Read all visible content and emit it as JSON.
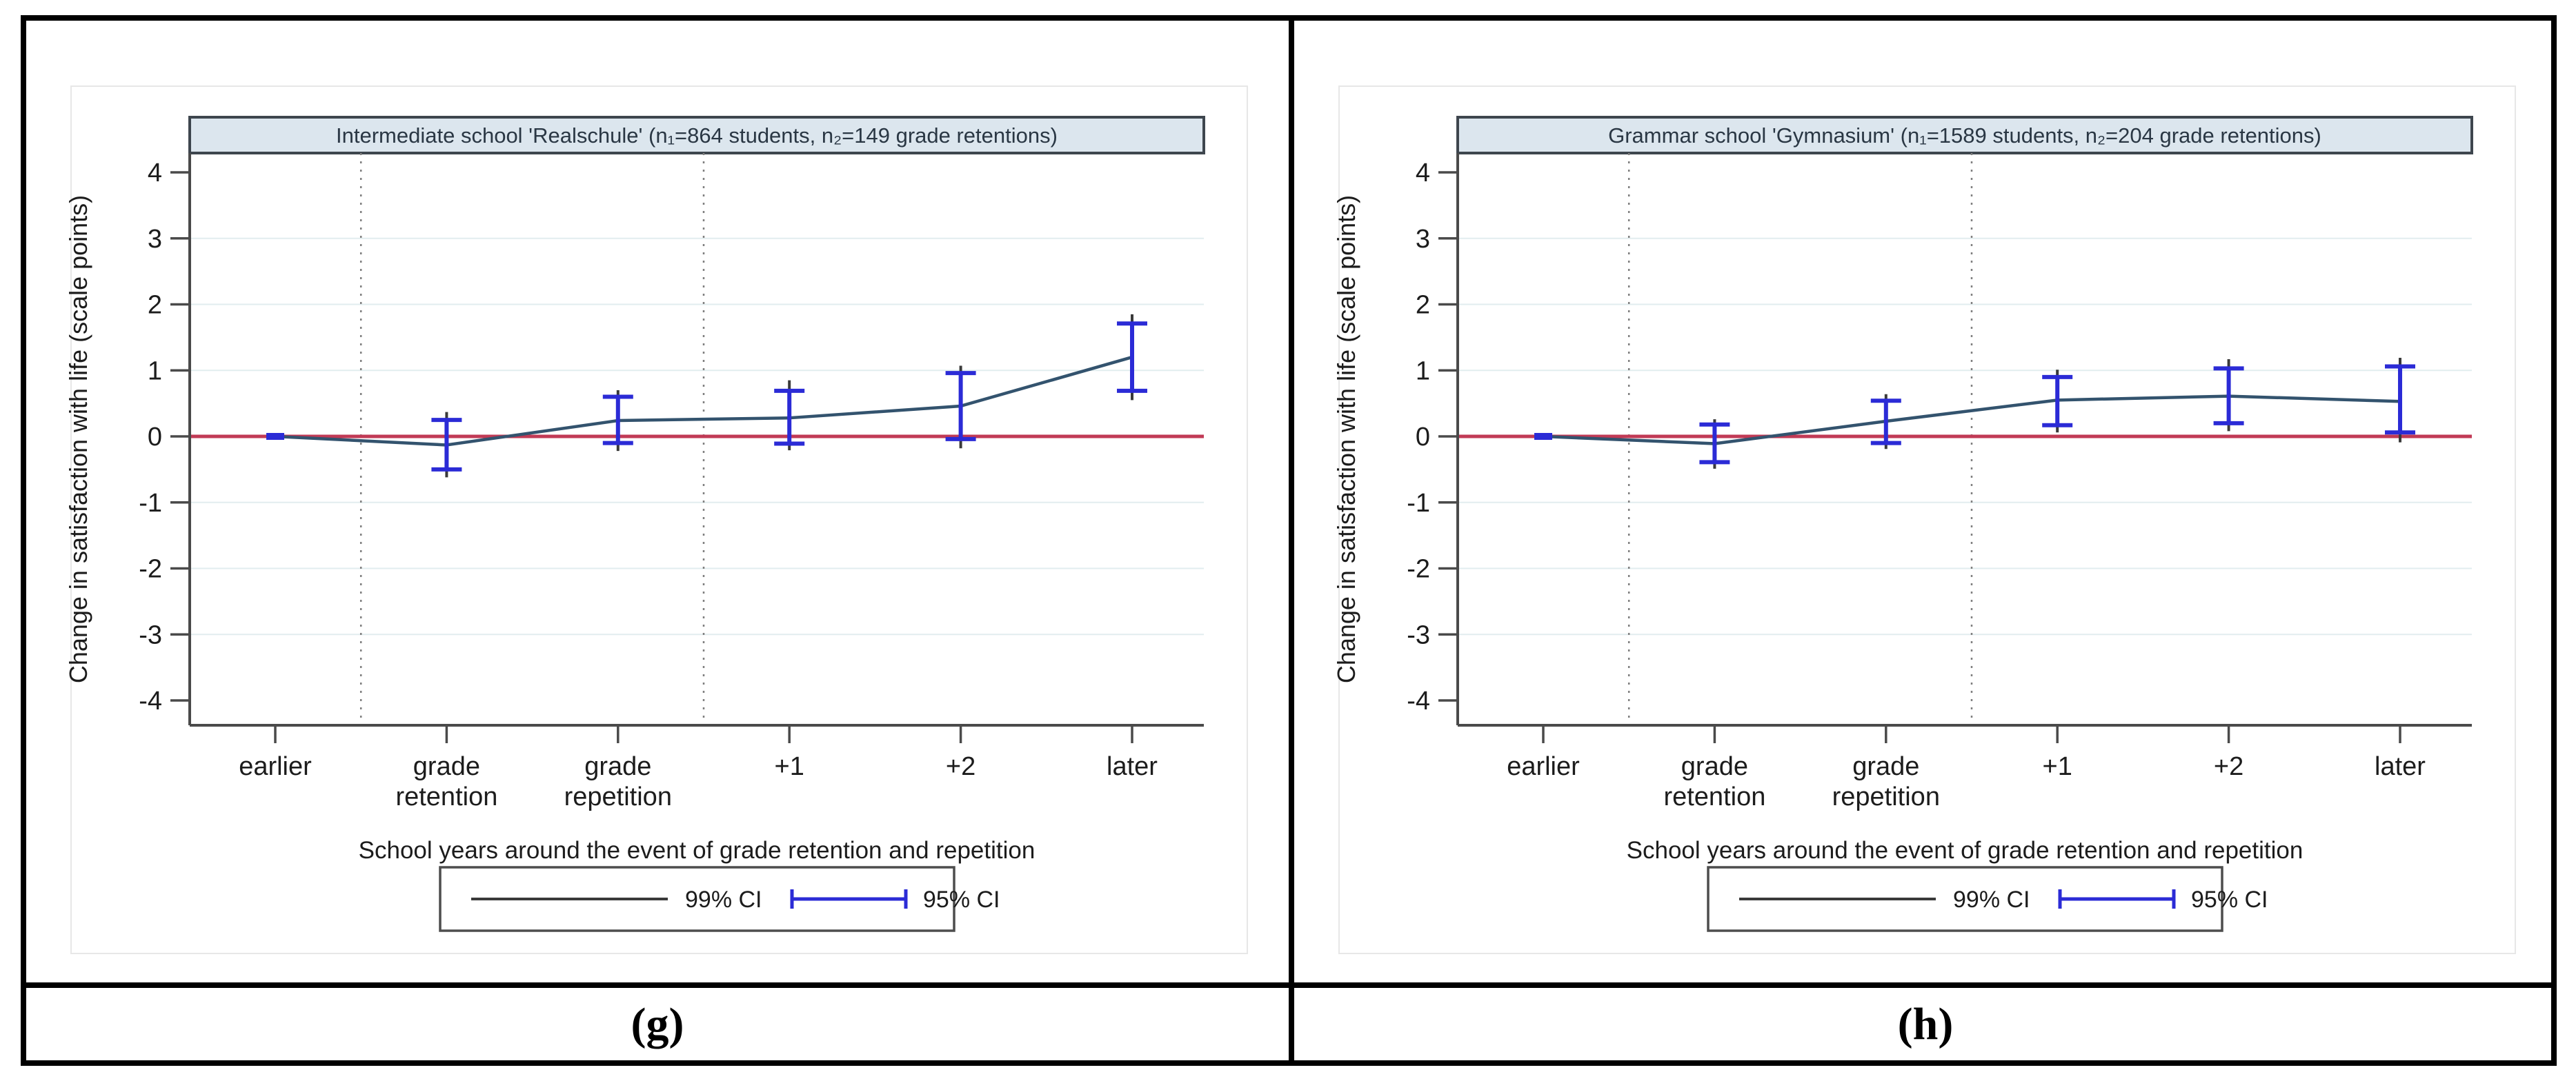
{
  "figure": {
    "captions": {
      "g": "(g)",
      "h": "(h)"
    }
  },
  "shared": {
    "ylabel": "Change in satisfaction with life (scale points)",
    "xlabel": "School years around the event of grade retention and repetition",
    "legend": {
      "ci99_label": "99% CI",
      "ci95_label": "95% CI"
    },
    "yticks": [
      4,
      3,
      2,
      1,
      0,
      -1,
      -2,
      -3,
      -4
    ],
    "colors": {
      "title_fill": "#dce6ee",
      "title_border": "#3e464e",
      "title_text": "#2a3744",
      "axis": "#4a4a4a",
      "tick_text": "#1c1c1c",
      "grid": "#e2edef",
      "dotted_line": "#7f7f7f",
      "zero_line": "#c13a55",
      "series_line": "#33536e",
      "ci99": "#3a3a3a",
      "ci95": "#2b2bd6",
      "legend_border": "#4d4d4d",
      "region_border": "#e7e7e7"
    }
  },
  "chart_data": [
    {
      "type": "line",
      "panel": "(g)",
      "title": "Intermediate school 'Realschule' (n₁=864 students, n₂=149 grade retentions)",
      "xlabel": "School years around the event of grade retention and repetition",
      "ylabel": "Change in satisfaction with life (scale points)",
      "categories": [
        "earlier",
        "grade retention",
        "grade repetition",
        "+1",
        "+2",
        "later"
      ],
      "category_lines": [
        [
          "earlier"
        ],
        [
          "grade",
          "retention"
        ],
        [
          "grade",
          "repetition"
        ],
        [
          "+1"
        ],
        [
          "+2"
        ],
        [
          "later"
        ]
      ],
      "ylim": [
        -4.5,
        4.5
      ],
      "yticks": [
        4,
        3,
        2,
        1,
        0,
        -1,
        -2,
        -3,
        -4
      ],
      "zero_reference_line": 0,
      "event_window_vlines_x": [
        0.5,
        2.5
      ],
      "grid": "horizontal-light",
      "legend_position": "bottom-center",
      "points": [
        {
          "label": "earlier",
          "est": 0.0,
          "ci95": [
            0.0,
            0.0
          ],
          "ci99": [
            0.0,
            0.0
          ],
          "reference": true
        },
        {
          "label": "grade retention",
          "est": -0.13,
          "ci95": [
            -0.5,
            0.25
          ],
          "ci99": [
            -0.62,
            0.37
          ]
        },
        {
          "label": "grade repetition",
          "est": 0.24,
          "ci95": [
            -0.1,
            0.6
          ],
          "ci99": [
            -0.22,
            0.7
          ]
        },
        {
          "label": "+1",
          "est": 0.28,
          "ci95": [
            -0.11,
            0.69
          ],
          "ci99": [
            -0.21,
            0.85
          ]
        },
        {
          "label": "+2",
          "est": 0.46,
          "ci95": [
            -0.04,
            0.96
          ],
          "ci99": [
            -0.18,
            1.07
          ]
        },
        {
          "label": "later",
          "est": 1.2,
          "ci95": [
            0.69,
            1.71
          ],
          "ci99": [
            0.55,
            1.85
          ]
        }
      ]
    },
    {
      "type": "line",
      "panel": "(h)",
      "title": "Grammar school 'Gymnasium' (n₁=1589 students, n₂=204 grade retentions)",
      "xlabel": "School years around the event of grade retention and repetition",
      "ylabel": "Change in satisfaction with life (scale points)",
      "categories": [
        "earlier",
        "grade retention",
        "grade repetition",
        "+1",
        "+2",
        "later"
      ],
      "category_lines": [
        [
          "earlier"
        ],
        [
          "grade",
          "retention"
        ],
        [
          "grade",
          "repetition"
        ],
        [
          "+1"
        ],
        [
          "+2"
        ],
        [
          "later"
        ]
      ],
      "ylim": [
        -4.5,
        4.5
      ],
      "yticks": [
        4,
        3,
        2,
        1,
        0,
        -1,
        -2,
        -3,
        -4
      ],
      "zero_reference_line": 0,
      "event_window_vlines_x": [
        0.5,
        2.5
      ],
      "grid": "horizontal-light",
      "legend_position": "bottom-center",
      "points": [
        {
          "label": "earlier",
          "est": 0.0,
          "ci95": [
            0.0,
            0.0
          ],
          "ci99": [
            0.0,
            0.0
          ],
          "reference": true
        },
        {
          "label": "grade retention",
          "est": -0.11,
          "ci95": [
            -0.39,
            0.18
          ],
          "ci99": [
            -0.49,
            0.26
          ]
        },
        {
          "label": "grade repetition",
          "est": 0.23,
          "ci95": [
            -0.1,
            0.54
          ],
          "ci99": [
            -0.19,
            0.64
          ]
        },
        {
          "label": "+1",
          "est": 0.55,
          "ci95": [
            0.17,
            0.9
          ],
          "ci99": [
            0.06,
            1.01
          ]
        },
        {
          "label": "+2",
          "est": 0.61,
          "ci95": [
            0.2,
            1.03
          ],
          "ci99": [
            0.08,
            1.17
          ]
        },
        {
          "label": "later",
          "est": 0.53,
          "ci95": [
            0.06,
            1.06
          ],
          "ci99": [
            -0.09,
            1.19
          ]
        }
      ]
    }
  ]
}
